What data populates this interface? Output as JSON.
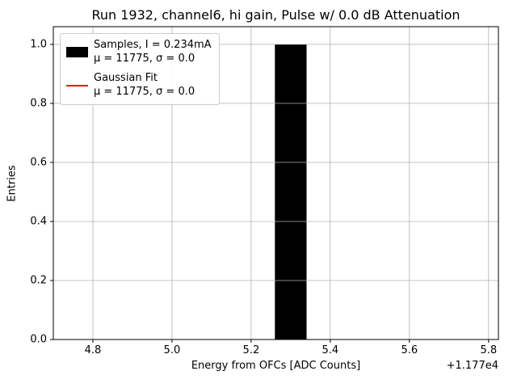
{
  "chart_data": {
    "type": "bar",
    "title": "Run 1932, channel6, hi gain, Pulse w/ 0.0 dB Attenuation",
    "xlabel": "Energy from OFCs [ADC Counts]",
    "ylabel": "Entries",
    "x_offset_label": "+1.177e4",
    "xlim": [
      4.7,
      5.825
    ],
    "ylim": [
      0,
      1.06
    ],
    "xticks": [
      4.8,
      5.0,
      5.2,
      5.4,
      5.6,
      5.8
    ],
    "xtick_labels": [
      "4.8",
      "5.0",
      "5.2",
      "5.4",
      "5.6",
      "5.8"
    ],
    "yticks": [
      0,
      0.2,
      0.4,
      0.6,
      0.8,
      1.0
    ],
    "ytick_labels": [
      "0.0",
      "0.2",
      "0.4",
      "0.6",
      "0.8",
      "1.0"
    ],
    "grid": true,
    "grid_color": "#b0b0b0",
    "spine_color": "#000000",
    "bars": [
      {
        "x_center": 5.3,
        "width": 0.08,
        "height": 1.0,
        "color": "#000000"
      }
    ],
    "legend": {
      "position": "upper-left",
      "entries": [
        {
          "swatch": "patch",
          "color": "#000000",
          "label": "Samples, I = 0.234mA",
          "sublabel": "μ = 11775, σ = 0.0"
        },
        {
          "swatch": "line",
          "color": "#ff0000",
          "label": "Gaussian Fit",
          "sublabel": "μ = 11775, σ = 0.0"
        }
      ]
    }
  }
}
